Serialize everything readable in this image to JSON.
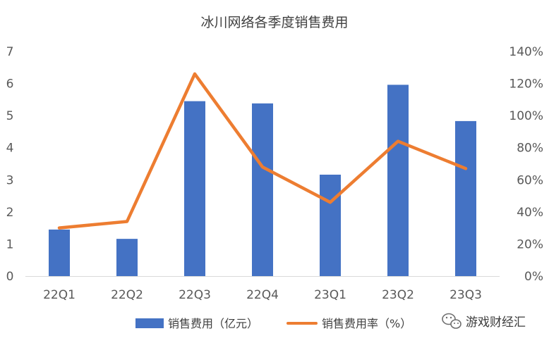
{
  "chart_data": {
    "type": "bar",
    "title": "冰川网络各季度销售费用",
    "categories": [
      "22Q1",
      "22Q2",
      "22Q3",
      "22Q4",
      "23Q1",
      "23Q2",
      "23Q3"
    ],
    "series": [
      {
        "name": "销售费用（亿元）",
        "type": "bar",
        "axis": "left",
        "color": "#4472C4",
        "values": [
          1.45,
          1.16,
          5.45,
          5.38,
          3.16,
          5.96,
          4.83
        ]
      },
      {
        "name": "销售费用率（%）",
        "type": "line",
        "axis": "right",
        "color": "#ED7D31",
        "values": [
          30,
          34,
          126,
          68,
          46,
          84,
          67
        ]
      }
    ],
    "y_left": {
      "min": 0,
      "max": 7,
      "ticks": [
        "0",
        "1",
        "2",
        "3",
        "4",
        "5",
        "6",
        "7"
      ]
    },
    "y_right": {
      "min": 0,
      "max": 140,
      "ticks": [
        "0%",
        "20%",
        "40%",
        "60%",
        "80%",
        "100%",
        "120%",
        "140%"
      ]
    },
    "grid": false,
    "legend_position": "bottom"
  },
  "watermark": {
    "text": "游戏财经汇",
    "icon": "wechat-icon"
  }
}
